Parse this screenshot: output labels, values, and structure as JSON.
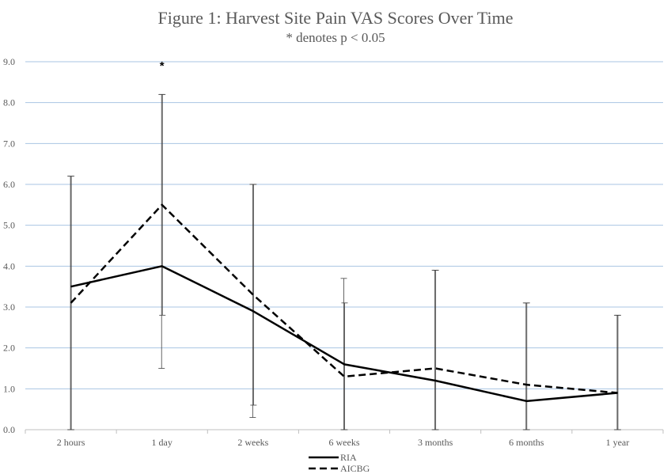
{
  "chart_data": {
    "type": "line",
    "title": "Figure 1: Harvest Site Pain VAS Scores Over Time",
    "subtitle": "* denotes p < 0.05",
    "xlabel": "",
    "ylabel": "",
    "categories": [
      "2 hours",
      "1 day",
      "2 weeks",
      "6 weeks",
      "3 months",
      "6 months",
      "1 year"
    ],
    "ylim": [
      0,
      9
    ],
    "ytick_labels": [
      "0.0",
      "1.0",
      "2.0",
      "3.0",
      "4.0",
      "5.0",
      "6.0",
      "7.0",
      "8.0",
      "9.0"
    ],
    "grid": true,
    "legend_position": "bottom",
    "series": [
      {
        "name": "RIA",
        "line_style": "solid",
        "color": "#000000",
        "values": [
          3.5,
          4.0,
          2.9,
          1.6,
          1.2,
          0.7,
          0.9
        ],
        "error_low": [
          0.0,
          1.5,
          0.3,
          0.0,
          0.0,
          0.0,
          0.0
        ],
        "error_high": [
          6.2,
          8.2,
          6.0,
          3.7,
          3.9,
          3.1,
          2.8
        ]
      },
      {
        "name": "AICBG",
        "line_style": "dashed",
        "color": "#000000",
        "values": [
          3.1,
          5.5,
          3.3,
          1.3,
          1.5,
          1.1,
          0.9
        ],
        "error_low": [
          0.0,
          2.8,
          0.6,
          0.0,
          0.0,
          0.0,
          0.0
        ],
        "error_high": [
          6.2,
          8.2,
          6.0,
          3.1,
          3.9,
          3.1,
          2.8
        ]
      }
    ],
    "annotations": [
      {
        "category": "1 day",
        "text": "*"
      }
    ]
  }
}
